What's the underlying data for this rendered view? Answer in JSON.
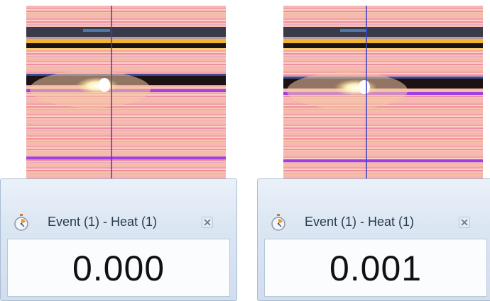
{
  "panels": [
    {
      "window_title": "Event (1) - Heat (1)",
      "time_value": "0.000",
      "icons": {
        "title_icon": "stopwatch-icon",
        "close_icon": "close-icon"
      }
    },
    {
      "window_title": "Event (1) - Heat (1)",
      "time_value": "0.001",
      "icons": {
        "title_icon": "stopwatch-icon",
        "close_icon": "close-icon"
      }
    }
  ],
  "colors": {
    "finish_line": "#3b3fbf",
    "lane_line_purple": "#a040e0",
    "dark_band": "#1b1414",
    "yellow_band": "#f2b233"
  }
}
